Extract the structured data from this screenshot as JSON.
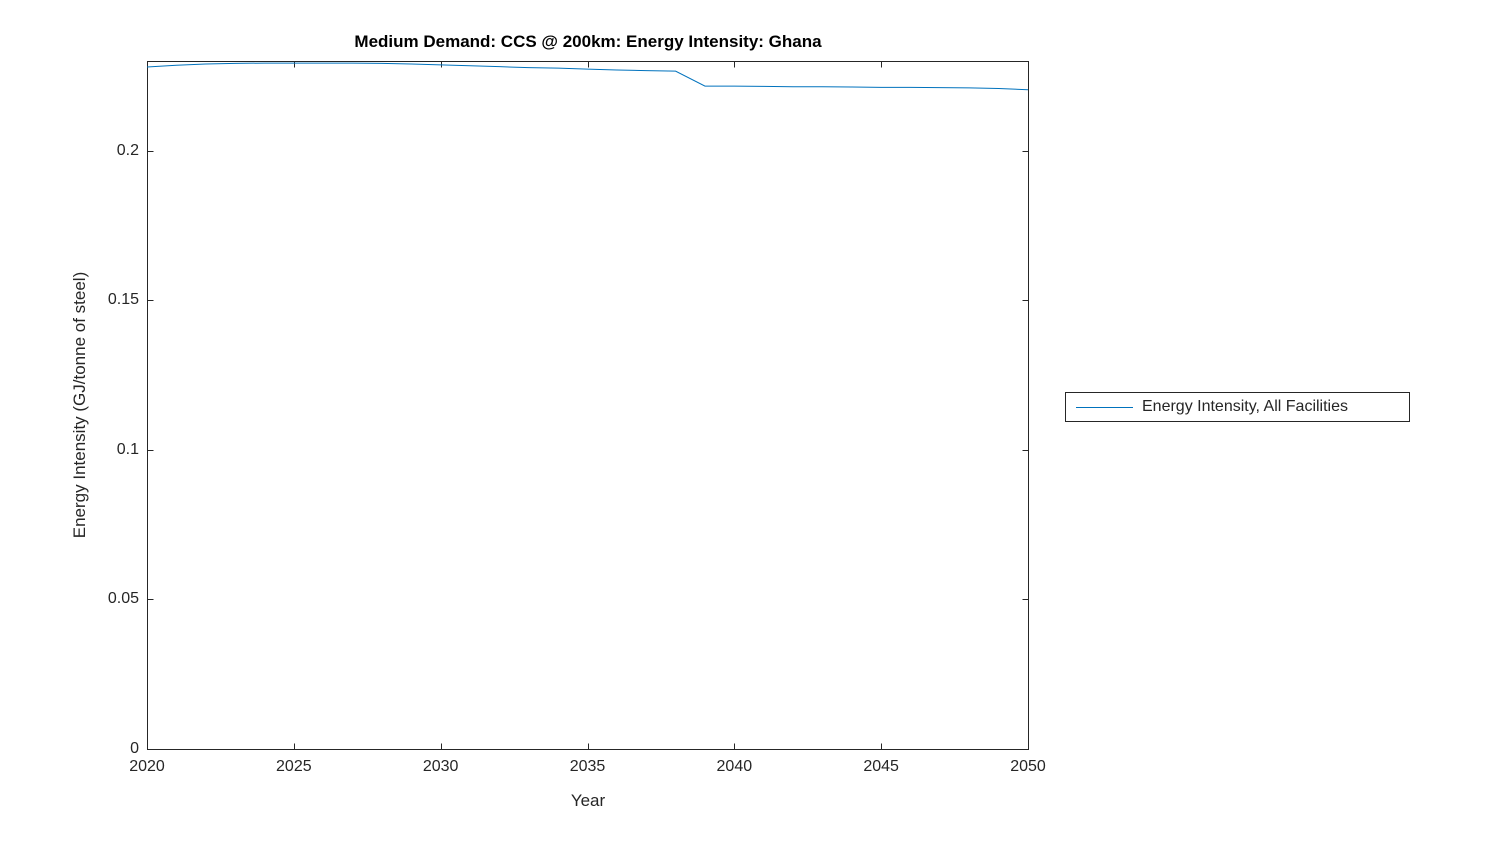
{
  "chart_data": {
    "type": "line",
    "title": "Medium Demand: CCS @ 200km: Energy Intensity: Ghana",
    "xlabel": "Year",
    "ylabel": "Energy Intensity (GJ/tonne of steel)",
    "xlim": [
      2020,
      2050
    ],
    "ylim": [
      0,
      0.23
    ],
    "xticks": [
      2020,
      2025,
      2030,
      2035,
      2040,
      2045,
      2050
    ],
    "xtick_labels": [
      "2020",
      "2025",
      "2030",
      "2035",
      "2040",
      "2045",
      "2050"
    ],
    "yticks": [
      0,
      0.05,
      0.1,
      0.15,
      0.2
    ],
    "ytick_labels": [
      "0",
      "0.05",
      "0.1",
      "0.15",
      "0.2"
    ],
    "grid": false,
    "box": true,
    "colors": {
      "line": "#0072BD",
      "axis": "#262626",
      "title": "#000000",
      "background": "#ffffff"
    },
    "legend": {
      "position": "eastoutside",
      "entries": [
        {
          "label": "Energy Intensity, All Facilities",
          "color": "#0072BD"
        }
      ]
    },
    "series": [
      {
        "name": "Energy Intensity, All Facilities",
        "color": "#0072BD",
        "x": [
          2020,
          2021,
          2022,
          2023,
          2024,
          2025,
          2026,
          2027,
          2028,
          2029,
          2030,
          2031,
          2032,
          2033,
          2034,
          2035,
          2036,
          2037,
          2038,
          2039,
          2040,
          2041,
          2042,
          2043,
          2044,
          2045,
          2046,
          2047,
          2048,
          2049,
          2050
        ],
        "y": [
          0.228,
          0.2286,
          0.229,
          0.2292,
          0.2293,
          0.2293,
          0.2293,
          0.2293,
          0.2292,
          0.229,
          0.2287,
          0.2284,
          0.2281,
          0.2278,
          0.2276,
          0.2273,
          0.227,
          0.2268,
          0.2266,
          0.2216,
          0.2216,
          0.2215,
          0.2214,
          0.2214,
          0.2213,
          0.2212,
          0.2212,
          0.2211,
          0.221,
          0.2208,
          0.2204
        ]
      }
    ]
  }
}
